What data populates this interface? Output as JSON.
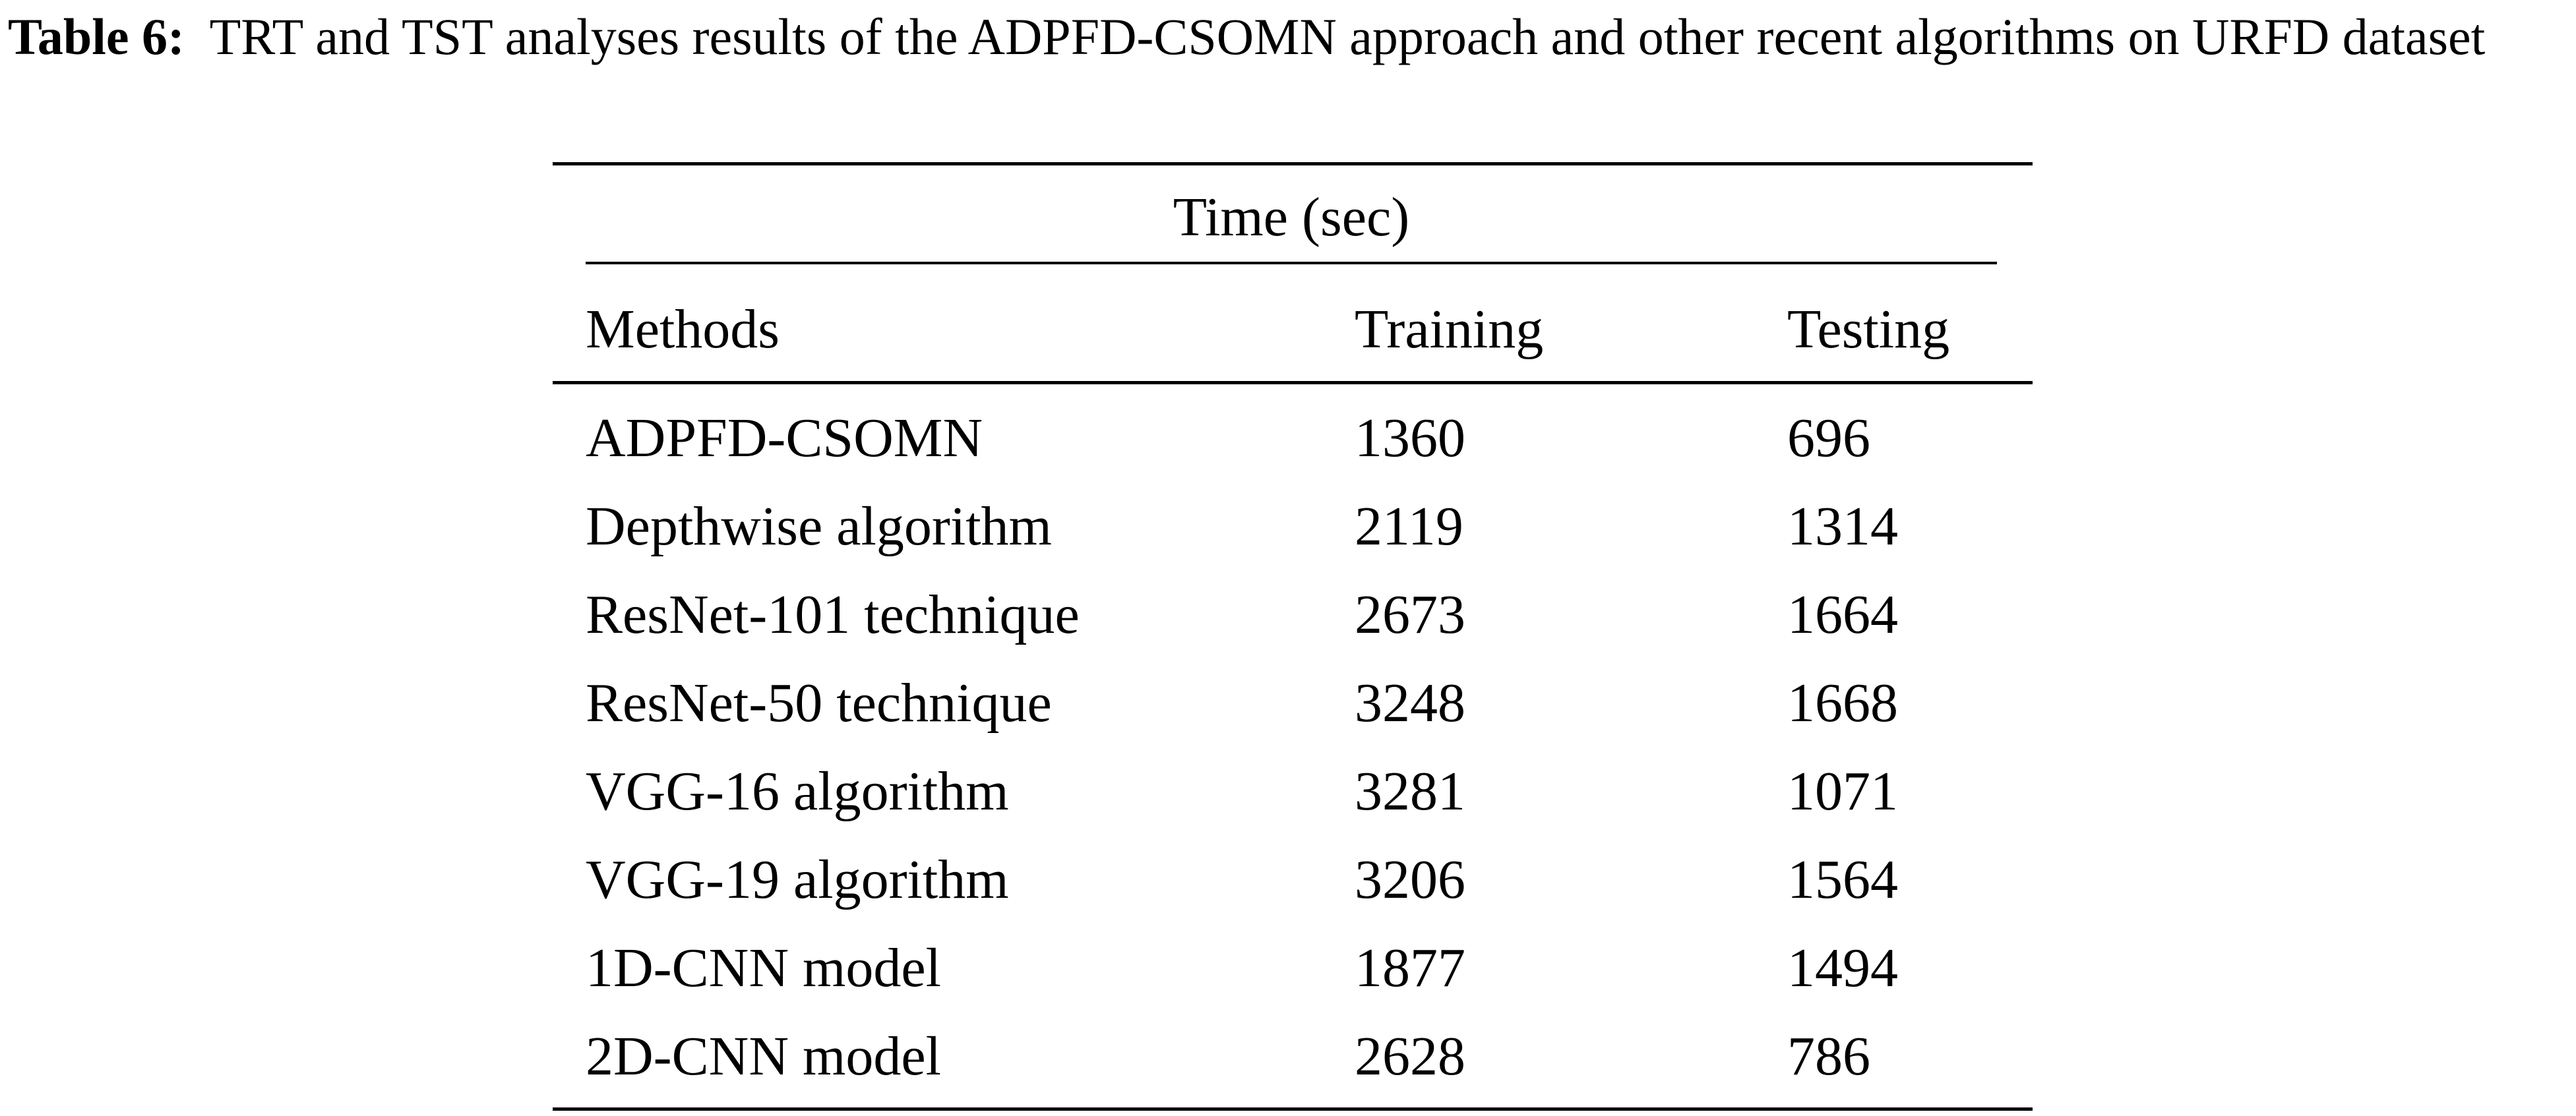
{
  "caption": {
    "label": "Table 6:",
    "text": "TRT and TST analyses results of the ADPFD-CSOMN approach and other recent algorithms on URFD dataset"
  },
  "table": {
    "group_header": "Time (sec)",
    "columns": [
      "Methods",
      "Training",
      "Testing"
    ],
    "rows": [
      {
        "method": "ADPFD-CSOMN",
        "training": "1360",
        "testing": "696"
      },
      {
        "method": "Depthwise algorithm",
        "training": "2119",
        "testing": "1314"
      },
      {
        "method": "ResNet-101 technique",
        "training": "2673",
        "testing": "1664"
      },
      {
        "method": "ResNet-50 technique",
        "training": "3248",
        "testing": "1668"
      },
      {
        "method": "VGG-16 algorithm",
        "training": "3281",
        "testing": "1071"
      },
      {
        "method": "VGG-19 algorithm",
        "training": "3206",
        "testing": "1564"
      },
      {
        "method": "1D-CNN model",
        "training": "1877",
        "testing": "1494"
      },
      {
        "method": "2D-CNN model",
        "training": "2628",
        "testing": "786"
      }
    ]
  }
}
